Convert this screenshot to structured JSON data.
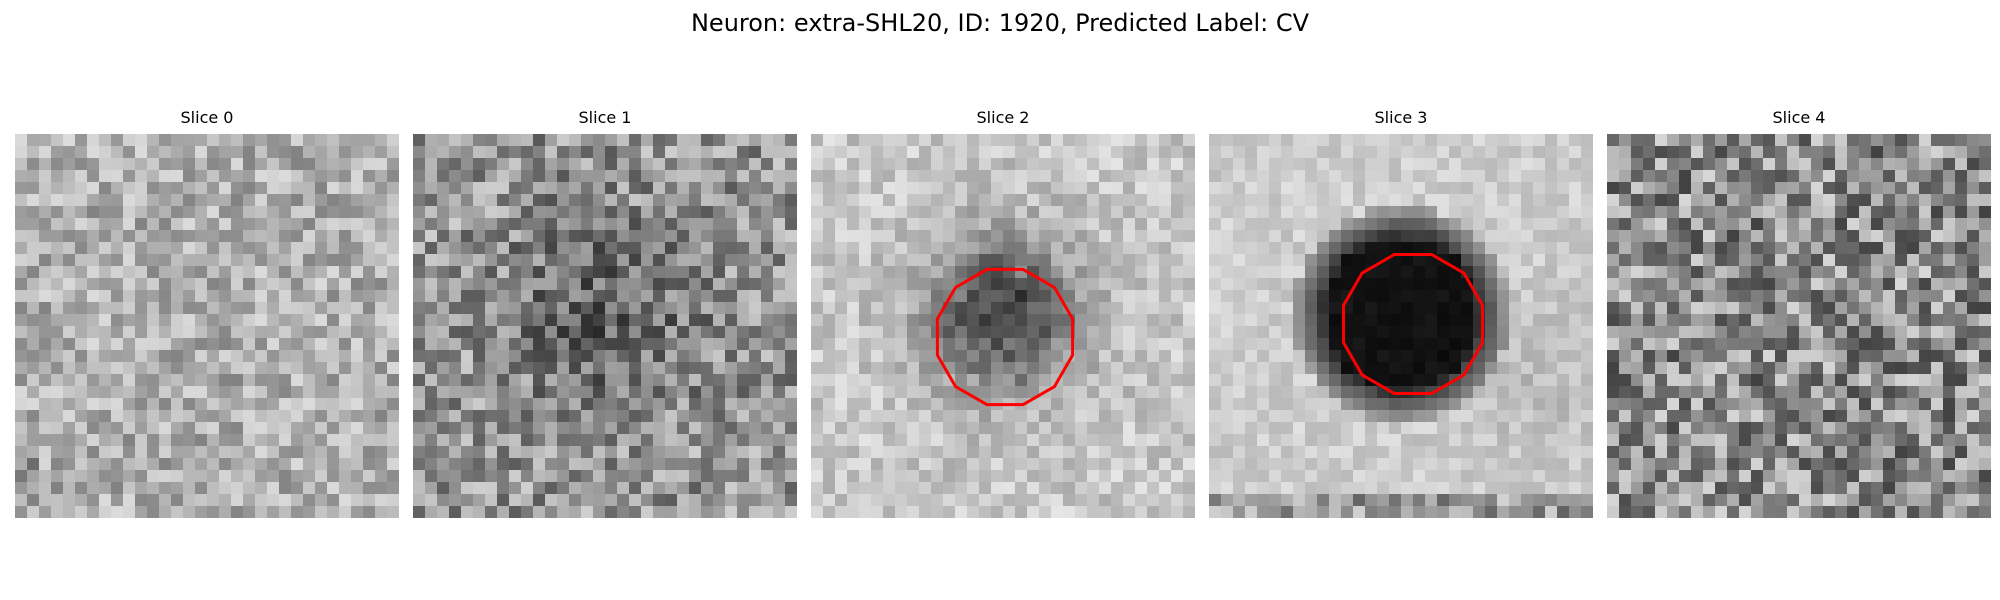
{
  "figure": {
    "title": "Neuron: extra-SHL20, ID: 1920, Predicted Label: CV"
  },
  "contour_color": "#ff0000",
  "slices": [
    {
      "label": "Slice 0",
      "pattern": "noise-light",
      "has_contour": false
    },
    {
      "label": "Slice 1",
      "pattern": "noise-dark-center",
      "has_contour": false
    },
    {
      "label": "Slice 2",
      "pattern": "faint-cell",
      "has_contour": true
    },
    {
      "label": "Slice 3",
      "pattern": "dark-cell",
      "has_contour": true
    },
    {
      "label": "Slice 4",
      "pattern": "noise-mixed",
      "has_contour": false
    }
  ]
}
